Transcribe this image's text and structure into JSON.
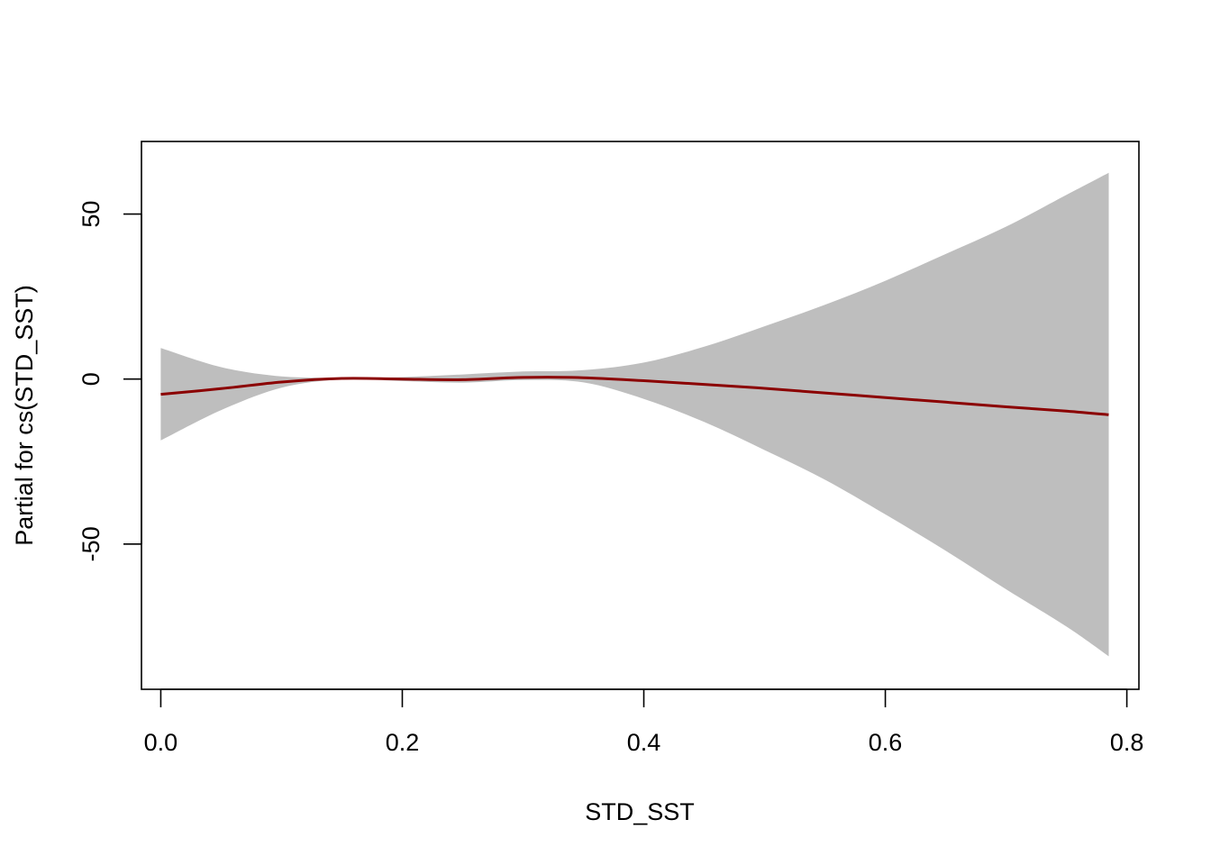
{
  "chart_data": {
    "type": "line",
    "title": "",
    "xlabel": "STD_SST",
    "ylabel": "Partial for cs(STD_SST)",
    "xlim": [
      -0.016,
      0.81
    ],
    "ylim": [
      -94,
      72
    ],
    "xticks": [
      0.0,
      0.2,
      0.4,
      0.6,
      0.8
    ],
    "xtick_labels": [
      "0.0",
      "0.2",
      "0.4",
      "0.6",
      "0.8"
    ],
    "yticks": [
      -50,
      0,
      50
    ],
    "ytick_labels": [
      "-50",
      "0",
      "50"
    ],
    "grid": false,
    "legend": "none",
    "colors": {
      "fit_line": "#8b0000",
      "confidence_band": "#bebebe",
      "axes": "#000000"
    },
    "x": [
      0.0,
      0.05,
      0.1,
      0.15,
      0.2,
      0.25,
      0.3,
      0.35,
      0.4,
      0.45,
      0.5,
      0.55,
      0.6,
      0.65,
      0.7,
      0.75,
      0.785
    ],
    "series": [
      {
        "role": "fit",
        "values": [
          -4.6,
          -2.9,
          -0.9,
          0.2,
          0.0,
          -0.2,
          0.5,
          0.4,
          -0.5,
          -1.6,
          -2.8,
          -4.2,
          -5.6,
          -7.0,
          -8.4,
          -9.7,
          -10.8
        ]
      },
      {
        "role": "upper",
        "values": [
          9.4,
          3.6,
          0.8,
          0.4,
          0.6,
          1.4,
          2.3,
          2.7,
          5.0,
          9.8,
          16.0,
          22.5,
          29.8,
          37.9,
          46.2,
          55.8,
          62.5
        ]
      },
      {
        "role": "lower",
        "values": [
          -18.6,
          -9.4,
          -2.6,
          -0.1,
          -0.6,
          -1.1,
          -0.3,
          -1.0,
          -6.0,
          -13.0,
          -21.5,
          -30.5,
          -41.0,
          -52.0,
          -63.7,
          -75.0,
          -84.0
        ]
      }
    ]
  }
}
